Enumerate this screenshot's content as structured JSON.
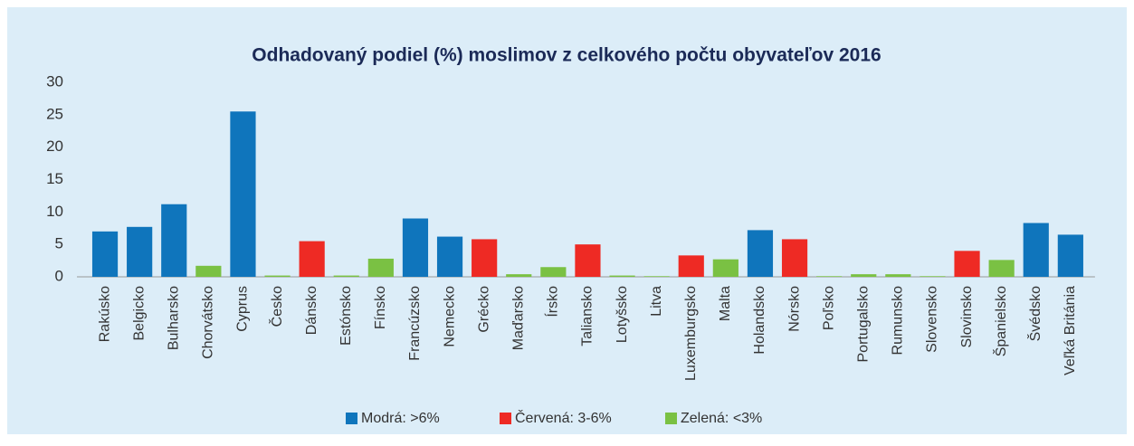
{
  "chart_data": {
    "type": "bar",
    "title": "Odhadovaný podiel (%) moslimov z celkového počtu obyvateľov 2016",
    "categories": [
      "Rakúsko",
      "Belgicko",
      "Bulharsko",
      "Chorvátsko",
      "Cyprus",
      "Česko",
      "Dánsko",
      "Estónsko",
      "Fínsko",
      "Francúzsko",
      "Nemecko",
      "Grécko",
      "Maďarsko",
      "Írsko",
      "Taliansko",
      "Lotyšsko",
      "Litva",
      "Luxemburgsko",
      "Malta",
      "Holandsko",
      "Nórsko",
      "Poľsko",
      "Portugalsko",
      "Rumunsko",
      "Slovensko",
      "Slovinsko",
      "Španielsko",
      "Švédsko",
      "Veľká Británia"
    ],
    "series": [
      {
        "name": "Modrá: >6%",
        "color": "#0f75bc",
        "values": [
          7.0,
          7.7,
          11.2,
          null,
          25.5,
          null,
          null,
          null,
          null,
          9.0,
          6.2,
          null,
          null,
          null,
          null,
          null,
          null,
          null,
          null,
          7.2,
          null,
          null,
          null,
          null,
          null,
          null,
          null,
          8.3,
          6.5
        ]
      },
      {
        "name": "Červená: 3-6%",
        "color": "#ee2a24",
        "values": [
          null,
          null,
          null,
          null,
          null,
          null,
          5.5,
          null,
          null,
          null,
          null,
          5.8,
          null,
          null,
          5.0,
          null,
          null,
          3.3,
          null,
          null,
          5.8,
          null,
          null,
          null,
          null,
          4.0,
          null,
          null,
          null
        ]
      },
      {
        "name": "Zelená: <3%",
        "color": "#7ac143",
        "values": [
          null,
          null,
          null,
          1.7,
          null,
          0.2,
          null,
          0.2,
          2.8,
          null,
          null,
          null,
          0.4,
          1.5,
          null,
          0.2,
          0.1,
          null,
          2.7,
          null,
          null,
          0.1,
          0.4,
          0.4,
          0.1,
          null,
          2.6,
          null,
          null
        ]
      }
    ],
    "ylim": [
      0,
      30
    ],
    "yticks": [
      0,
      5,
      10,
      15,
      20,
      25,
      30
    ],
    "grid": false,
    "legend": "bottom"
  }
}
